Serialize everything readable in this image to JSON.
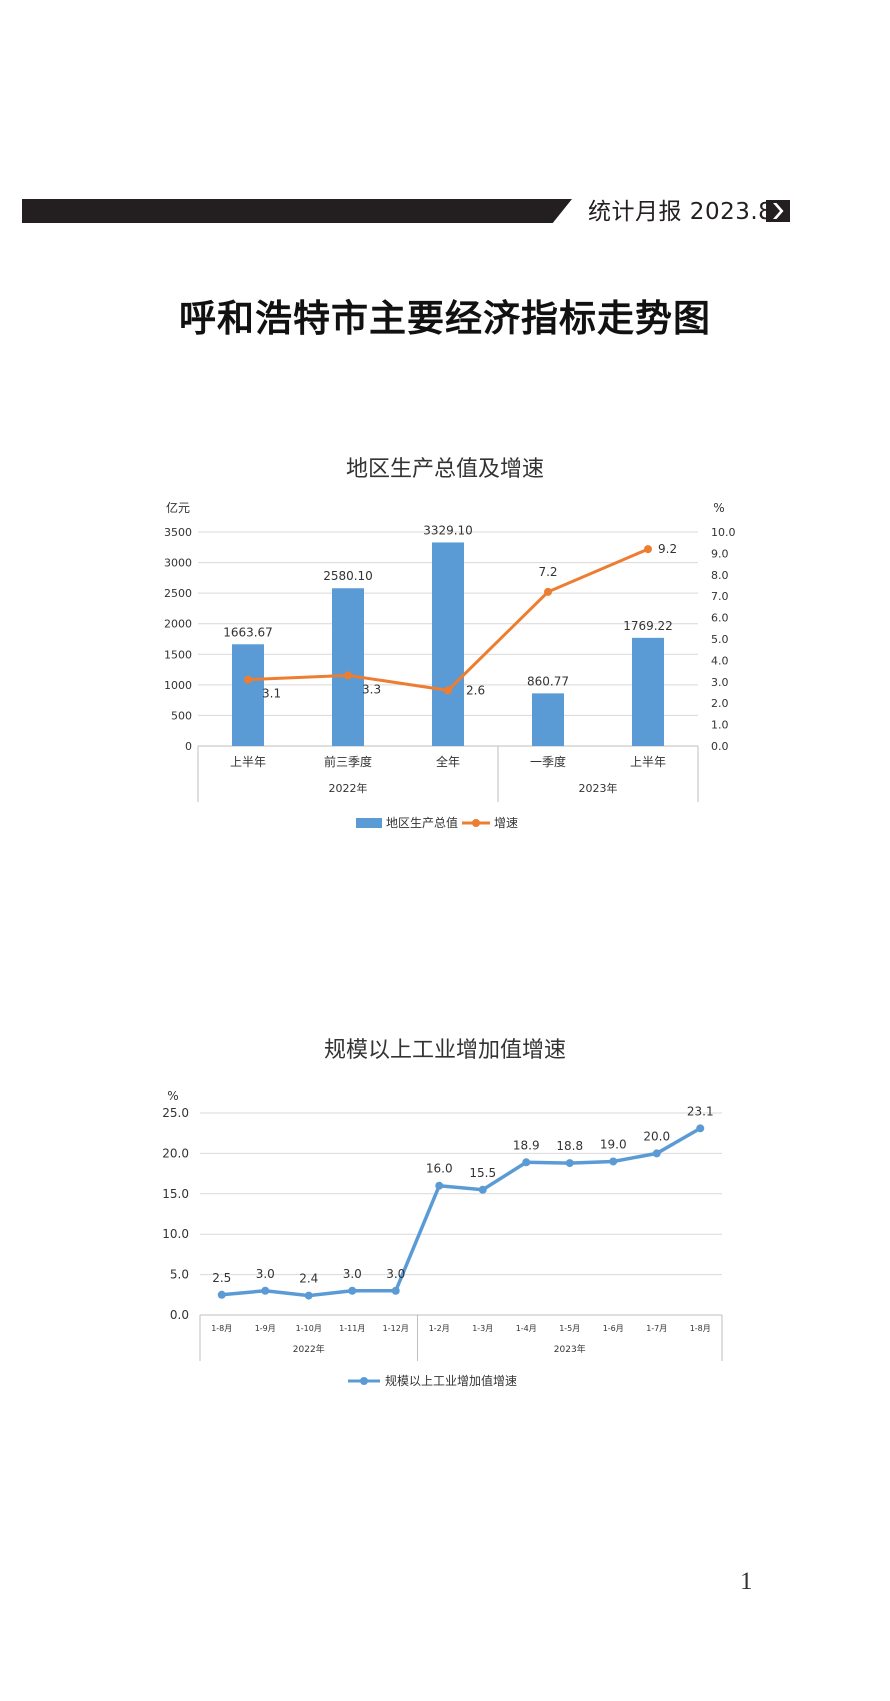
{
  "header": {
    "label": "统计月报 2023.8",
    "arrow_icon": "chevron-right-icon"
  },
  "page_title": "呼和浩特市主要经济指标走势图",
  "page_number": "1",
  "colors": {
    "bar": "#5b9bd5",
    "line_orange": "#ed7d31",
    "line_blue": "#5b9bd5",
    "grid": "#d9d9d9",
    "header": "#231f20"
  },
  "chart_data": [
    {
      "type": "bar",
      "title": "地区生产总值及增速",
      "ylabel": "亿元",
      "y2label": "%",
      "ylim": [
        0,
        3500
      ],
      "y_ticks": [
        "0",
        "500",
        "1000",
        "1500",
        "2000",
        "2500",
        "3000",
        "3500"
      ],
      "y2lim": [
        0,
        10
      ],
      "y2_ticks": [
        "0.0",
        "1.0",
        "2.0",
        "3.0",
        "4.0",
        "5.0",
        "6.0",
        "7.0",
        "8.0",
        "9.0",
        "10.0"
      ],
      "categories": [
        "上半年",
        "前三季度",
        "全年",
        "一季度",
        "上半年"
      ],
      "groups": [
        {
          "label": "2022年",
          "count": 3
        },
        {
          "label": "2023年",
          "count": 2
        }
      ],
      "series": [
        {
          "name": "地区生产总值",
          "kind": "bar",
          "axis": "left",
          "values": [
            1663.67,
            2580.1,
            3329.1,
            860.77,
            1769.22
          ],
          "labels": [
            "1663.67",
            "2580.10",
            "3329.10",
            "860.77",
            "1769.22"
          ]
        },
        {
          "name": "增速",
          "kind": "line",
          "axis": "right",
          "values": [
            3.1,
            3.3,
            2.6,
            7.2,
            9.2
          ],
          "labels": [
            "3.1",
            "3.3",
            "2.6",
            "7.2",
            "9.2"
          ]
        }
      ],
      "legend": "bottom",
      "grid": true
    },
    {
      "type": "line",
      "title": "规模以上工业增加值增速",
      "ylabel": "%",
      "ylim": [
        0,
        25
      ],
      "y_ticks": [
        "0.0",
        "5.0",
        "10.0",
        "15.0",
        "20.0",
        "25.0"
      ],
      "categories": [
        "1-8月",
        "1-9月",
        "1-10月",
        "1-11月",
        "1-12月",
        "1-2月",
        "1-3月",
        "1-4月",
        "1-5月",
        "1-6月",
        "1-7月",
        "1-8月"
      ],
      "groups": [
        {
          "label": "2022年",
          "count": 5
        },
        {
          "label": "2023年",
          "count": 7
        }
      ],
      "series": [
        {
          "name": "规模以上工业增加值增速",
          "values": [
            2.5,
            3.0,
            2.4,
            3.0,
            3.0,
            16.0,
            15.5,
            18.9,
            18.8,
            19.0,
            20.0,
            23.1
          ],
          "labels": [
            "2.5",
            "3.0",
            "2.4",
            "3.0",
            "3.0",
            "16.0",
            "15.5",
            "18.9",
            "18.8",
            "19.0",
            "20.0",
            "23.1"
          ]
        }
      ],
      "legend": "bottom",
      "grid": true
    }
  ]
}
